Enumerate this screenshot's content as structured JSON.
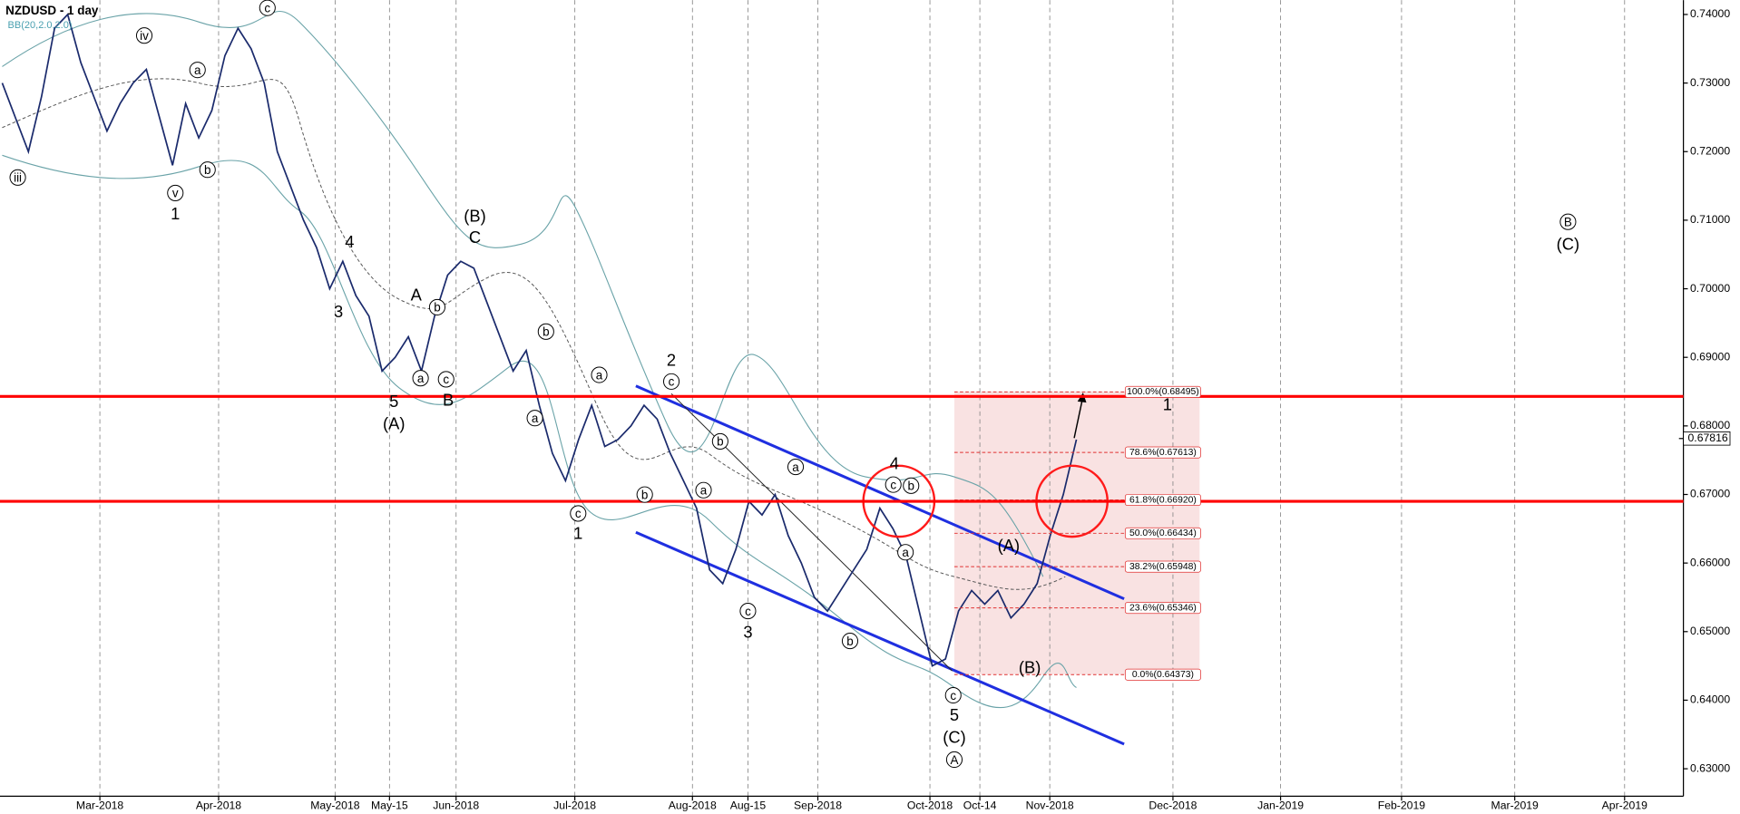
{
  "chart_data": {
    "type": "line",
    "title": "NZDUSD - 1 day",
    "subtitle": "BB(20,2.0,2.0)",
    "color": "#1a2a6c",
    "ylim": [
      0.626,
      0.7421
    ],
    "yticks": [
      {
        "value": 0.74,
        "label": "0.74000"
      },
      {
        "value": 0.73,
        "label": "0.73000"
      },
      {
        "value": 0.72,
        "label": "0.72000"
      },
      {
        "value": 0.71,
        "label": "0.71000"
      },
      {
        "value": 0.7,
        "label": "0.70000"
      },
      {
        "value": 0.69,
        "label": "0.69000"
      },
      {
        "value": 0.68,
        "label": "0.68000"
      },
      {
        "value": 0.67,
        "label": "0.67000"
      },
      {
        "value": 0.66,
        "label": "0.66000"
      },
      {
        "value": 0.65,
        "label": "0.65000"
      },
      {
        "value": 0.64,
        "label": "0.64000"
      },
      {
        "value": 0.63,
        "label": "0.63000"
      }
    ],
    "xticks": [
      "Mar-2018",
      "Apr-2018",
      "May-2018",
      "May-15",
      "Jun-2018",
      "Jul-2018",
      "Aug-2018",
      "Aug-15",
      "Sep-2018",
      "Oct-2018",
      "Oct-14",
      "Nov-2018",
      "Dec-2018",
      "Jan-2019",
      "Feb-2019",
      "Mar-2019",
      "Apr-2019"
    ],
    "grid": true,
    "values": [
      0.73,
      0.725,
      0.72,
      0.728,
      0.738,
      0.74,
      0.733,
      0.728,
      0.723,
      0.727,
      0.73,
      0.732,
      0.725,
      0.718,
      0.727,
      0.722,
      0.726,
      0.734,
      0.738,
      0.735,
      0.73,
      0.72,
      0.715,
      0.71,
      0.706,
      0.7,
      0.704,
      0.699,
      0.696,
      0.688,
      0.69,
      0.693,
      0.688,
      0.696,
      0.702,
      0.704,
      0.703,
      0.698,
      0.693,
      0.688,
      0.691,
      0.683,
      0.676,
      0.672,
      0.678,
      0.683,
      0.677,
      0.678,
      0.68,
      0.683,
      0.681,
      0.676,
      0.672,
      0.668,
      0.659,
      0.657,
      0.662,
      0.669,
      0.667,
      0.67,
      0.664,
      0.66,
      0.655,
      0.653,
      0.656,
      0.659,
      0.662,
      0.668,
      0.665,
      0.661,
      0.653,
      0.645,
      0.646,
      0.653,
      0.656,
      0.654,
      0.656,
      0.652,
      0.654,
      0.657,
      0.664,
      0.67,
      0.678
    ],
    "current_price": {
      "value": 0.67816,
      "label": "0.67816"
    },
    "levels": [
      {
        "value": 0.6843,
        "color": "#ff0000"
      },
      {
        "value": 0.669,
        "color": "#ff0000"
      }
    ],
    "fib_levels": [
      {
        "value": 0.68495,
        "label": "100.0%(0.68495)"
      },
      {
        "value": 0.67613,
        "label": "78.6%(0.67613)"
      },
      {
        "value": 0.6692,
        "label": "61.8%(0.66920)"
      },
      {
        "value": 0.66434,
        "label": "50.0%(0.66434)"
      },
      {
        "value": 0.65948,
        "label": "38.2%(0.65948)"
      },
      {
        "value": 0.65346,
        "label": "23.6%(0.65346)"
      },
      {
        "value": 0.64373,
        "label": "0.0%(0.64373)"
      }
    ],
    "annotations": [
      {
        "text": "1",
        "circled": false
      },
      {
        "text": "4",
        "circled": false
      },
      {
        "text": "3",
        "circled": false
      },
      {
        "text": "5",
        "circled": false
      },
      {
        "text": "(A)",
        "circled": false
      },
      {
        "text": "A",
        "circled": false
      },
      {
        "text": "B",
        "circled": false
      },
      {
        "text": "(B)",
        "circled": false
      },
      {
        "text": "C",
        "circled": false
      },
      {
        "text": "2",
        "circled": false
      },
      {
        "text": "1",
        "circled": false
      },
      {
        "text": "3",
        "circled": false
      },
      {
        "text": "4",
        "circled": false
      },
      {
        "text": "5",
        "circled": false
      },
      {
        "text": "(C)",
        "circled": false
      },
      {
        "text": "(A)",
        "circled": false
      },
      {
        "text": "(B)",
        "circled": false
      },
      {
        "text": "1",
        "circled": false
      },
      {
        "text": "(C)",
        "circled": false
      },
      {
        "text": "iii",
        "circled": true
      },
      {
        "text": "v",
        "circled": true
      },
      {
        "text": "iv",
        "circled": true
      },
      {
        "text": "a",
        "circled": true
      },
      {
        "text": "b",
        "circled": true
      },
      {
        "text": "c",
        "circled": true
      },
      {
        "text": "a",
        "circled": true
      },
      {
        "text": "b",
        "circled": true
      },
      {
        "text": "c",
        "circled": true
      },
      {
        "text": "b",
        "circled": true
      },
      {
        "text": "a",
        "circled": true
      },
      {
        "text": "a",
        "circled": true
      },
      {
        "text": "c",
        "circled": true
      },
      {
        "text": "b",
        "circled": true
      },
      {
        "text": "c",
        "circled": true
      },
      {
        "text": "b",
        "circled": true
      },
      {
        "text": "a",
        "circled": true
      },
      {
        "text": "c",
        "circled": true
      },
      {
        "text": "a",
        "circled": true
      },
      {
        "text": "b",
        "circled": true
      },
      {
        "text": "c",
        "circled": true
      },
      {
        "text": "b",
        "circled": true
      },
      {
        "text": "a",
        "circled": true
      },
      {
        "text": "c",
        "circled": true
      },
      {
        "text": "A",
        "circled": true
      },
      {
        "text": "B",
        "circled": true
      }
    ]
  }
}
